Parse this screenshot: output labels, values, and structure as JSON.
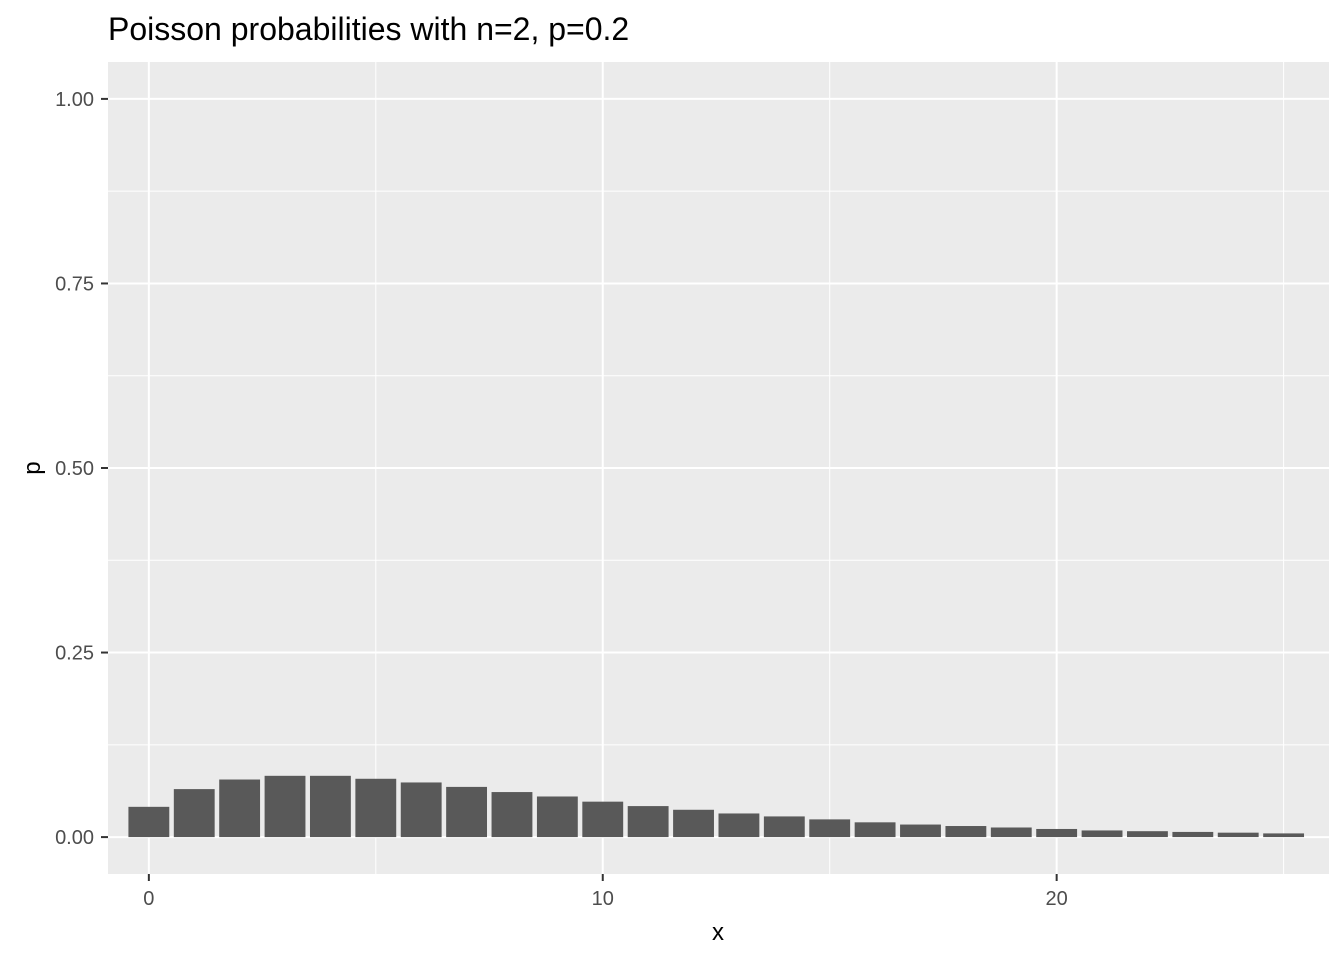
{
  "chart_data": {
    "type": "bar",
    "title": "Poisson probabilities with n=2, p=0.2",
    "xlabel": "x",
    "ylabel": "p",
    "x": [
      0,
      1,
      2,
      3,
      4,
      5,
      6,
      7,
      8,
      9,
      10,
      11,
      12,
      13,
      14,
      15,
      16,
      17,
      18,
      19,
      20,
      21,
      22,
      23,
      24,
      25
    ],
    "values": [
      0.041,
      0.065,
      0.078,
      0.083,
      0.083,
      0.079,
      0.074,
      0.068,
      0.061,
      0.055,
      0.048,
      0.042,
      0.037,
      0.032,
      0.028,
      0.024,
      0.02,
      0.017,
      0.015,
      0.013,
      0.011,
      0.009,
      0.008,
      0.007,
      0.006,
      0.005
    ],
    "xlim": [
      -0.9,
      26.0
    ],
    "ylim": [
      -0.05,
      1.05
    ],
    "x_ticks": [
      0,
      10,
      20
    ],
    "x_tick_labels": [
      "0",
      "10",
      "20"
    ],
    "y_ticks": [
      0,
      0.25,
      0.5,
      0.75,
      1.0
    ],
    "y_tick_labels": [
      "0.00",
      "0.25",
      "0.50",
      "0.75",
      "1.00"
    ],
    "grid": true,
    "colors": {
      "panel": "#ebebeb",
      "bar": "#595959",
      "grid": "#ffffff",
      "text": "#4d4d4d"
    }
  }
}
